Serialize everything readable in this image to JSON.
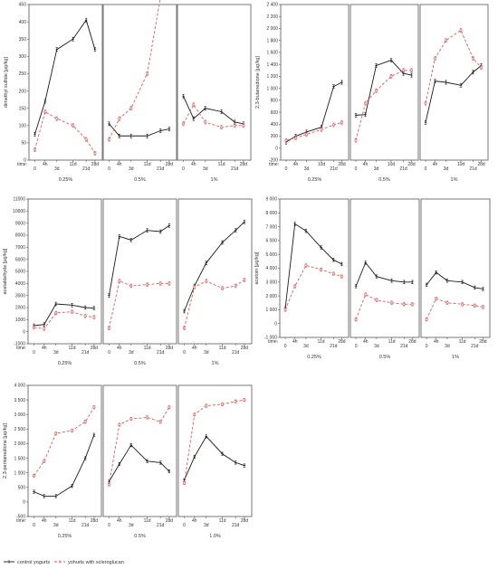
{
  "legend": {
    "series": [
      {
        "name": "control yogurts",
        "color": "#1a1a1a",
        "dash": "solid",
        "marker": "cross"
      },
      {
        "name": "yohurts with scleroglucan",
        "color": "#e05a5a",
        "dash": "dashed",
        "marker": "circle"
      }
    ]
  },
  "x_axis": {
    "time_label": "time:",
    "ticks_row1": [
      "0",
      "3d",
      "21d"
    ],
    "ticks_row2": [
      "4h",
      "11d",
      "28d"
    ],
    "ticks_row2_alt": [
      "4h",
      "10d",
      "28d"
    ]
  },
  "chart_data": [
    {
      "type": "line",
      "ylabel": "dimethyl sulfide [μg/kg]",
      "ylim": [
        0,
        450
      ],
      "yticks": [
        "0",
        "50",
        "100",
        "150",
        "200",
        "250",
        "300",
        "350",
        "400",
        "450"
      ],
      "ytick_values": [
        0,
        50,
        100,
        150,
        200,
        250,
        300,
        350,
        400,
        450
      ],
      "time_row2": "ticks_row2",
      "panels": [
        {
          "label": "0.25%",
          "control": [
            75,
            170,
            320,
            350,
            405,
            320
          ],
          "sclero": [
            30,
            140,
            120,
            100,
            60,
            20
          ]
        },
        {
          "label": "0.5%",
          "control": [
            105,
            70,
            70,
            70,
            85,
            90
          ],
          "sclero": [
            60,
            120,
            150,
            250,
            470,
            490
          ]
        },
        {
          "label": "1%",
          "control": [
            185,
            120,
            150,
            140,
            110,
            105
          ],
          "sclero": [
            105,
            160,
            110,
            95,
            100,
            100
          ]
        }
      ]
    },
    {
      "type": "line",
      "ylabel": "2,3-butanedione [μg/kg]",
      "ylim": [
        -200,
        2400
      ],
      "yticks": [
        "-200",
        "0",
        "200",
        "400",
        "600",
        "800",
        "1 000",
        "1 200",
        "1 400",
        "1 600",
        "1 800",
        "2 000",
        "2 200",
        "2 400"
      ],
      "ytick_values": [
        -200,
        0,
        200,
        400,
        600,
        800,
        1000,
        1200,
        1400,
        1600,
        1800,
        2000,
        2200,
        2400
      ],
      "time_row2": "ticks_row2_alt",
      "panels": [
        {
          "label": "0.25%",
          "control": [
            100,
            200,
            270,
            350,
            1030,
            1100
          ],
          "sclero": [
            130,
            170,
            230,
            310,
            390,
            430
          ]
        },
        {
          "label": "0.5%",
          "control": [
            550,
            560,
            1380,
            1470,
            1250,
            1220
          ],
          "sclero": [
            130,
            750,
            960,
            1200,
            1300,
            1300
          ]
        },
        {
          "label": "1%",
          "control": [
            430,
            1120,
            1100,
            1050,
            1270,
            1380
          ],
          "sclero": [
            750,
            1500,
            1800,
            1970,
            1500,
            1350
          ]
        }
      ]
    },
    {
      "type": "line",
      "ylabel": "acetaldehyde [μg/kg]",
      "ylim": [
        -1000,
        11000
      ],
      "yticks": [
        "-1000",
        "0",
        "1000",
        "2000",
        "3000",
        "4000",
        "5000",
        "6000",
        "7000",
        "8000",
        "9000",
        "10000",
        "11000"
      ],
      "ytick_values": [
        -1000,
        0,
        1000,
        2000,
        3000,
        4000,
        5000,
        6000,
        7000,
        8000,
        9000,
        10000,
        11000
      ],
      "time_row2": "ticks_row2",
      "panels": [
        {
          "label": "0.25%",
          "control": [
            500,
            600,
            2300,
            2200,
            2000,
            1950
          ],
          "sclero": [
            350,
            250,
            1550,
            1650,
            1300,
            1200
          ]
        },
        {
          "label": "0.5%",
          "control": [
            3000,
            7900,
            7600,
            8400,
            8300,
            8800
          ],
          "sclero": [
            300,
            4200,
            3800,
            3900,
            4000,
            4000
          ]
        },
        {
          "label": "1%",
          "control": [
            1700,
            3800,
            5700,
            7400,
            8400,
            9100
          ],
          "sclero": [
            300,
            3700,
            4200,
            3600,
            3800,
            4300
          ]
        }
      ]
    },
    {
      "type": "line",
      "ylabel": "acetoin [μg/kg]",
      "ylim": [
        -1000,
        9000
      ],
      "yticks": [
        "-1 000",
        "0",
        "1 000",
        "2 000",
        "3 000",
        "4 000",
        "5 000",
        "6 000",
        "7 000",
        "8 000",
        "9 000"
      ],
      "ytick_values": [
        -1000,
        0,
        1000,
        2000,
        3000,
        4000,
        5000,
        6000,
        7000,
        8000,
        9000
      ],
      "time_row2": "ticks_row2",
      "panels": [
        {
          "label": "0.25%",
          "control": [
            1100,
            7200,
            6700,
            5500,
            4600,
            4300
          ],
          "sclero": [
            1000,
            2700,
            4200,
            3900,
            3600,
            3400
          ]
        },
        {
          "label": "0.5%",
          "control": [
            2700,
            4400,
            3400,
            3100,
            3000,
            3000
          ],
          "sclero": [
            300,
            2100,
            1700,
            1500,
            1400,
            1400
          ]
        },
        {
          "label": "1%",
          "control": [
            2800,
            3700,
            3100,
            3000,
            2600,
            2500
          ],
          "sclero": [
            300,
            1800,
            1500,
            1400,
            1300,
            1200
          ]
        }
      ]
    },
    {
      "type": "line",
      "ylabel": "2,3-pentanedione [μg/kg]",
      "ylim": [
        -500,
        4000
      ],
      "yticks": [
        "-500",
        "0",
        "500",
        "1 000",
        "1 500",
        "2 000",
        "2 500",
        "3 000",
        "3 500",
        "4 000"
      ],
      "ytick_values": [
        -500,
        0,
        500,
        1000,
        1500,
        2000,
        2500,
        3000,
        3500,
        4000
      ],
      "time_row2": "ticks_row2",
      "panels": [
        {
          "label": "0.25%",
          "control": [
            350,
            200,
            200,
            550,
            1500,
            2300
          ],
          "sclero": [
            900,
            1400,
            2350,
            2450,
            2750,
            3250
          ]
        },
        {
          "label": "0.5%",
          "control": [
            700,
            1300,
            1950,
            1400,
            1350,
            1050
          ],
          "sclero": [
            600,
            2650,
            2850,
            2900,
            2750,
            3250
          ]
        },
        {
          "label": "1.0%",
          "control": [
            750,
            1550,
            2250,
            1650,
            1350,
            1250
          ],
          "sclero": [
            650,
            3000,
            3300,
            3350,
            3450,
            3500
          ]
        }
      ]
    }
  ]
}
